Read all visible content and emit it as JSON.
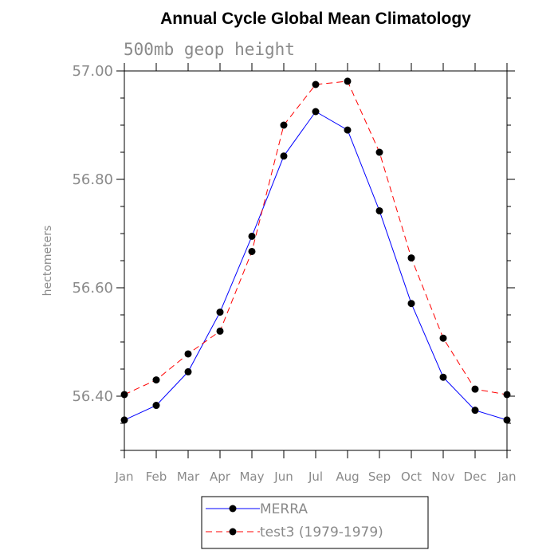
{
  "chart_data": {
    "type": "line",
    "title": "Annual Cycle Global Mean Climatology",
    "subtitle": "500mb geop height",
    "xlabel": "",
    "ylabel": "hectometers",
    "categories": [
      "Jan",
      "Feb",
      "Mar",
      "Apr",
      "May",
      "Jun",
      "Jul",
      "Aug",
      "Sep",
      "Oct",
      "Nov",
      "Dec",
      "Jan"
    ],
    "ylim": [
      56.3,
      57.0
    ],
    "yticks": [
      56.4,
      56.6,
      56.8,
      57.0
    ],
    "ytick_labels": [
      "56.40",
      "56.60",
      "56.80",
      "57.00"
    ],
    "grid": false,
    "legend_position": "bottom-center",
    "series": [
      {
        "name": "MERRA",
        "color": "#0000ff",
        "line_style": "solid",
        "marker": "filled-circle",
        "values": [
          56.356,
          56.383,
          56.445,
          56.555,
          56.695,
          56.843,
          56.925,
          56.891,
          56.742,
          56.571,
          56.435,
          56.374,
          56.356
        ]
      },
      {
        "name": "test3 (1979-1979)",
        "color": "#ff0000",
        "line_style": "dashed",
        "marker": "filled-circle",
        "values": [
          56.403,
          56.43,
          56.478,
          56.52,
          56.667,
          56.9,
          56.975,
          56.981,
          56.85,
          56.655,
          56.507,
          56.413,
          56.403
        ]
      }
    ]
  }
}
